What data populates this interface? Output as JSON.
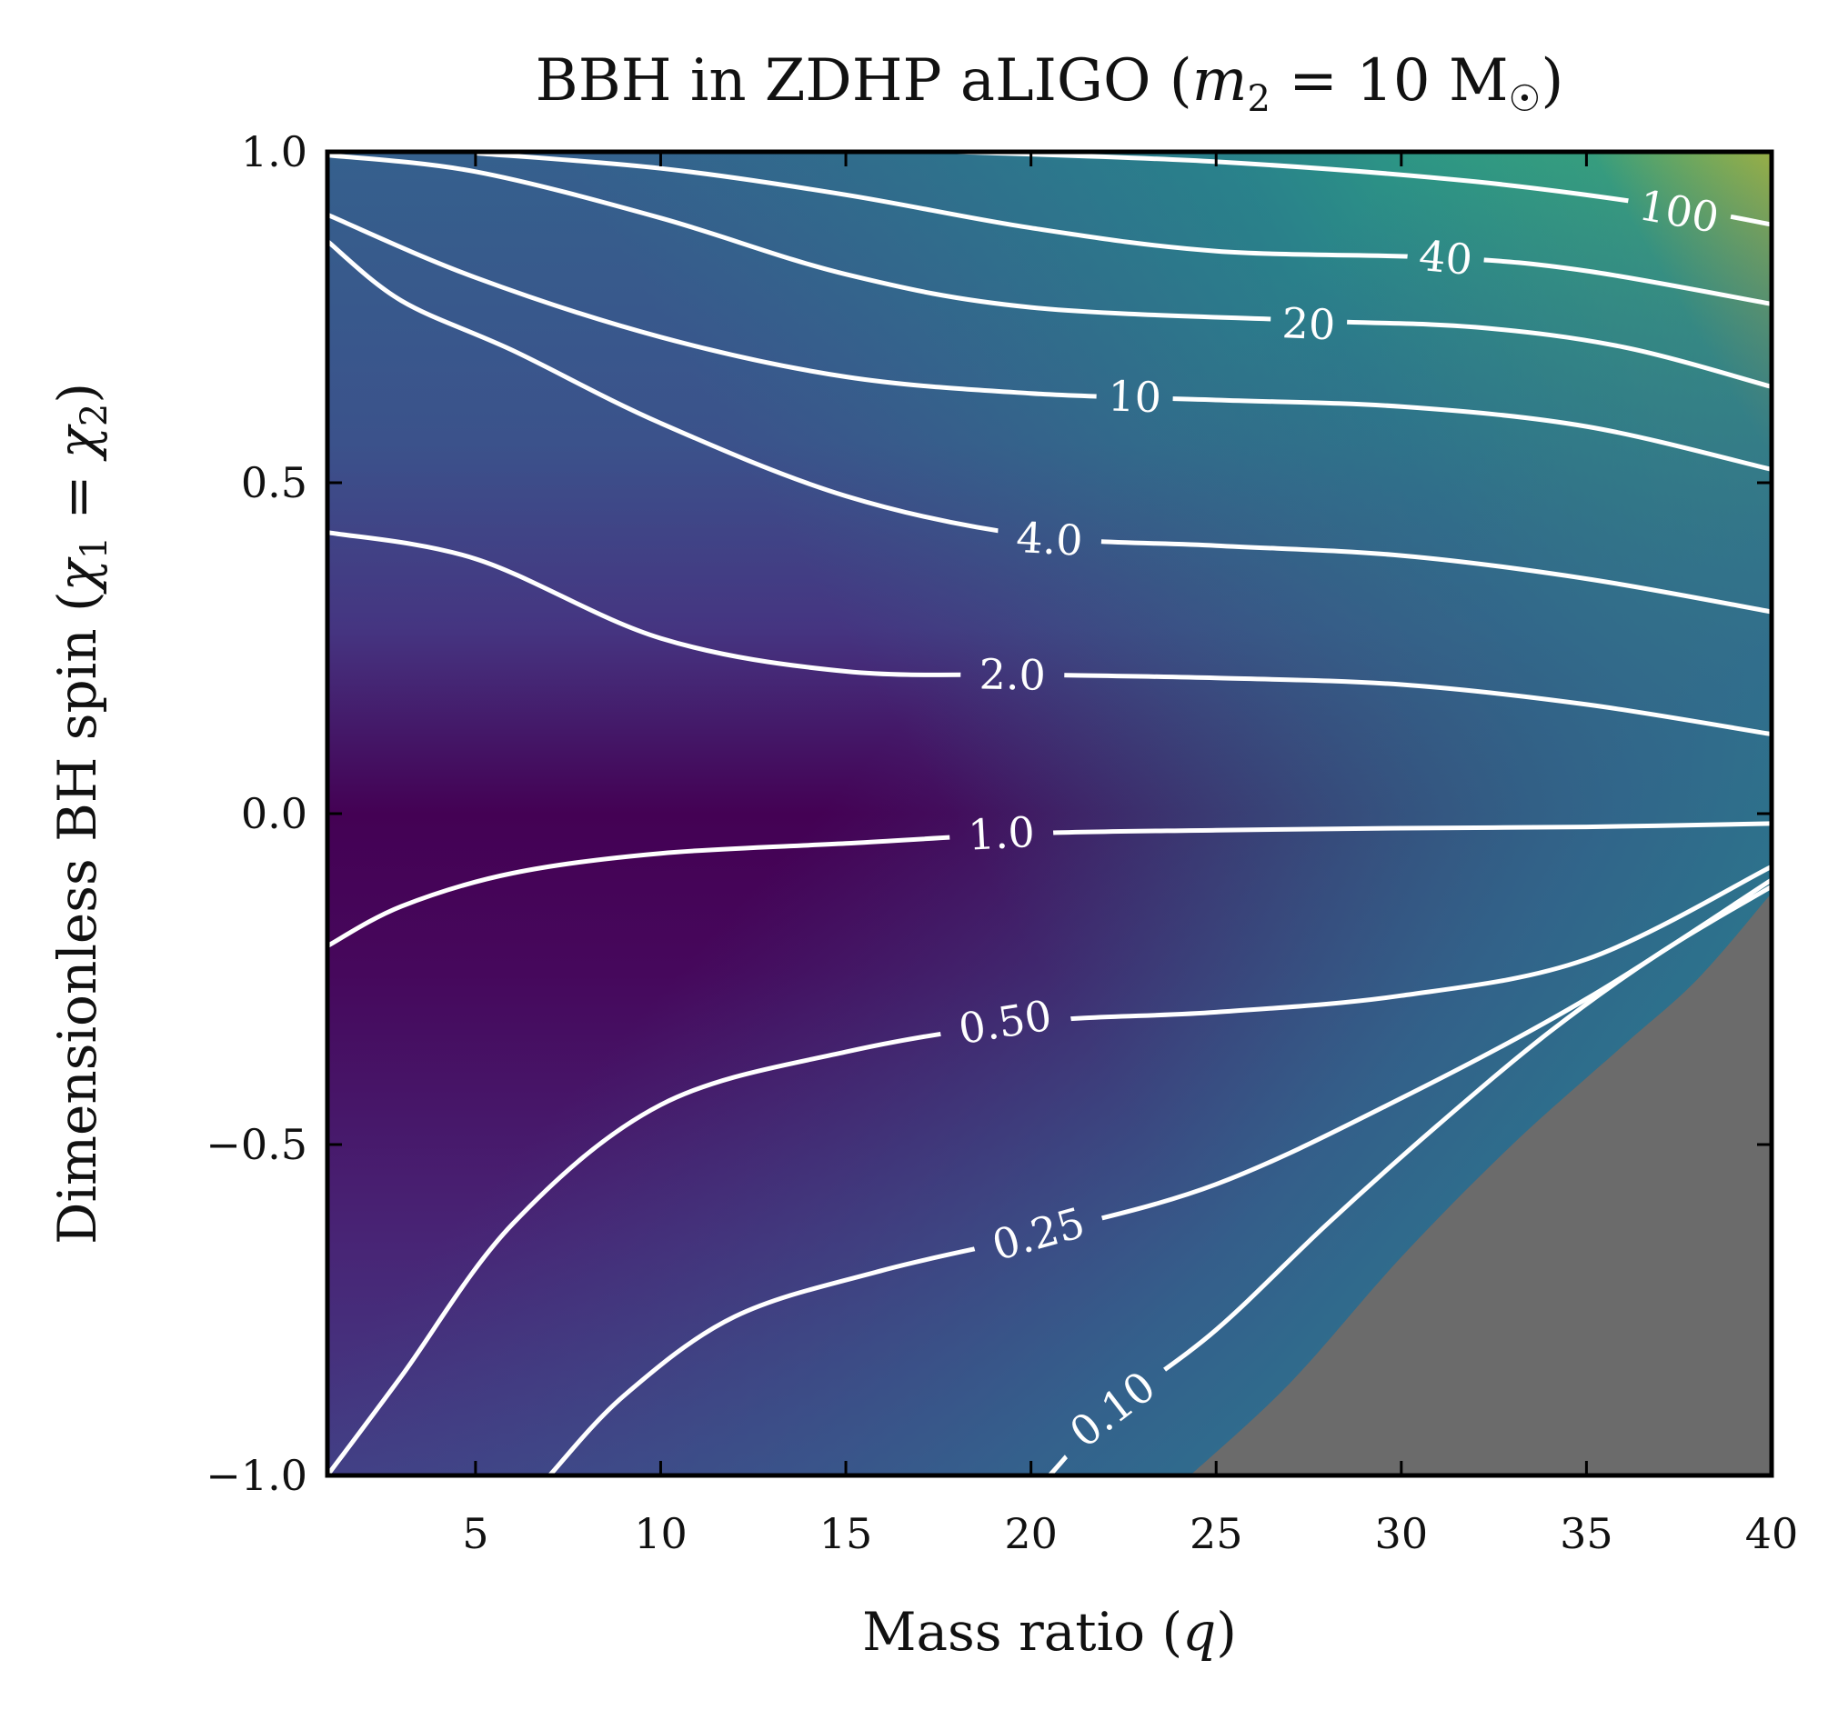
{
  "chart_data": {
    "type": "heatmap",
    "title": "BBH in ZDHP aLIGO (m₂ = 10 M☉)",
    "xlabel": "Mass ratio (q)",
    "ylabel": "Dimensionless BH spin (χ₁ = χ₂)",
    "xlim": [
      1,
      40
    ],
    "ylim": [
      -1.0,
      1.0
    ],
    "xticks": [
      5,
      10,
      15,
      20,
      25,
      30,
      35,
      40
    ],
    "xtick_labels": [
      "5",
      "10",
      "15",
      "20",
      "25",
      "30",
      "35",
      "40"
    ],
    "yticks": [
      -1.0,
      -0.5,
      0.0,
      0.5,
      1.0
    ],
    "ytick_labels": [
      "−1.0",
      "−0.5",
      "0.0",
      "0.5",
      "1.0"
    ],
    "colormap": "viridis",
    "excluded_region_color": "#6b6b6b",
    "contour_color": "#ffffff",
    "contours": [
      {
        "level": 100,
        "label": "100",
        "label_at": [
          37.5,
          0.91
        ],
        "points": [
          [
            18,
            1.0
          ],
          [
            25,
            0.985
          ],
          [
            32,
            0.955
          ],
          [
            37.5,
            0.915
          ],
          [
            40,
            0.89
          ]
        ]
      },
      {
        "level": 40,
        "label": "40",
        "label_at": [
          31.2,
          0.84
        ],
        "points": [
          [
            5,
            0.998
          ],
          [
            10,
            0.975
          ],
          [
            15,
            0.935
          ],
          [
            20,
            0.885
          ],
          [
            25,
            0.85
          ],
          [
            31.2,
            0.84
          ],
          [
            35,
            0.82
          ],
          [
            40,
            0.77
          ]
        ]
      },
      {
        "level": 20,
        "label": "20",
        "label_at": [
          27.5,
          0.74
        ],
        "points": [
          [
            1,
            0.995
          ],
          [
            5,
            0.97
          ],
          [
            10,
            0.9
          ],
          [
            15,
            0.815
          ],
          [
            20,
            0.765
          ],
          [
            27.5,
            0.745
          ],
          [
            32,
            0.735
          ],
          [
            36,
            0.705
          ],
          [
            40,
            0.645
          ]
        ]
      },
      {
        "level": 10,
        "label": "10",
        "label_at": [
          22.8,
          0.63
        ],
        "points": [
          [
            1,
            0.905
          ],
          [
            5,
            0.81
          ],
          [
            10,
            0.72
          ],
          [
            15,
            0.66
          ],
          [
            20,
            0.635
          ],
          [
            25,
            0.625
          ],
          [
            30,
            0.615
          ],
          [
            35,
            0.585
          ],
          [
            40,
            0.52
          ]
        ]
      },
      {
        "level": 4.0,
        "label": "4.0",
        "label_at": [
          20.5,
          0.415
        ],
        "points": [
          [
            1,
            0.865
          ],
          [
            3,
            0.775
          ],
          [
            6,
            0.7
          ],
          [
            10,
            0.59
          ],
          [
            15,
            0.48
          ],
          [
            20,
            0.42
          ],
          [
            25,
            0.405
          ],
          [
            30,
            0.39
          ],
          [
            35,
            0.355
          ],
          [
            40,
            0.305
          ]
        ]
      },
      {
        "level": 2.0,
        "label": "2.0",
        "label_at": [
          19.5,
          0.21
        ],
        "points": [
          [
            1,
            0.425
          ],
          [
            5,
            0.385
          ],
          [
            10,
            0.265
          ],
          [
            15,
            0.215
          ],
          [
            20,
            0.21
          ],
          [
            25,
            0.205
          ],
          [
            30,
            0.195
          ],
          [
            35,
            0.165
          ],
          [
            40,
            0.12
          ]
        ]
      },
      {
        "level": 1.0,
        "label": "1.0",
        "label_at": [
          19.2,
          -0.03
        ],
        "points": [
          [
            1,
            -0.2
          ],
          [
            3,
            -0.14
          ],
          [
            6,
            -0.09
          ],
          [
            10,
            -0.06
          ],
          [
            15,
            -0.045
          ],
          [
            20,
            -0.03
          ],
          [
            25,
            -0.025
          ],
          [
            30,
            -0.022
          ],
          [
            35,
            -0.02
          ],
          [
            40,
            -0.015
          ]
        ]
      },
      {
        "level": 0.5,
        "label": "0.50",
        "label_at": [
          19.3,
          -0.315
        ],
        "points": [
          [
            1,
            -1.0
          ],
          [
            3,
            -0.85
          ],
          [
            6,
            -0.62
          ],
          [
            10,
            -0.44
          ],
          [
            15,
            -0.36
          ],
          [
            20,
            -0.315
          ],
          [
            25,
            -0.3
          ],
          [
            30,
            -0.275
          ],
          [
            35,
            -0.22
          ],
          [
            40,
            -0.08
          ]
        ]
      },
      {
        "level": 0.25,
        "label": "0.25",
        "label_at": [
          20.2,
          -0.635
        ],
        "points": [
          [
            7,
            -1.0
          ],
          [
            9,
            -0.88
          ],
          [
            12,
            -0.76
          ],
          [
            16,
            -0.69
          ],
          [
            20.2,
            -0.635
          ],
          [
            25,
            -0.56
          ],
          [
            30,
            -0.43
          ],
          [
            35,
            -0.28
          ],
          [
            40,
            -0.1
          ]
        ]
      },
      {
        "level": 0.1,
        "label": "0.10",
        "label_at": [
          22.2,
          -0.9
        ],
        "points": [
          [
            20.5,
            -1.0
          ],
          [
            22.2,
            -0.9
          ],
          [
            25,
            -0.78
          ],
          [
            28,
            -0.62
          ],
          [
            31,
            -0.47
          ],
          [
            34,
            -0.33
          ],
          [
            37,
            -0.21
          ],
          [
            40,
            -0.11
          ]
        ]
      }
    ]
  }
}
